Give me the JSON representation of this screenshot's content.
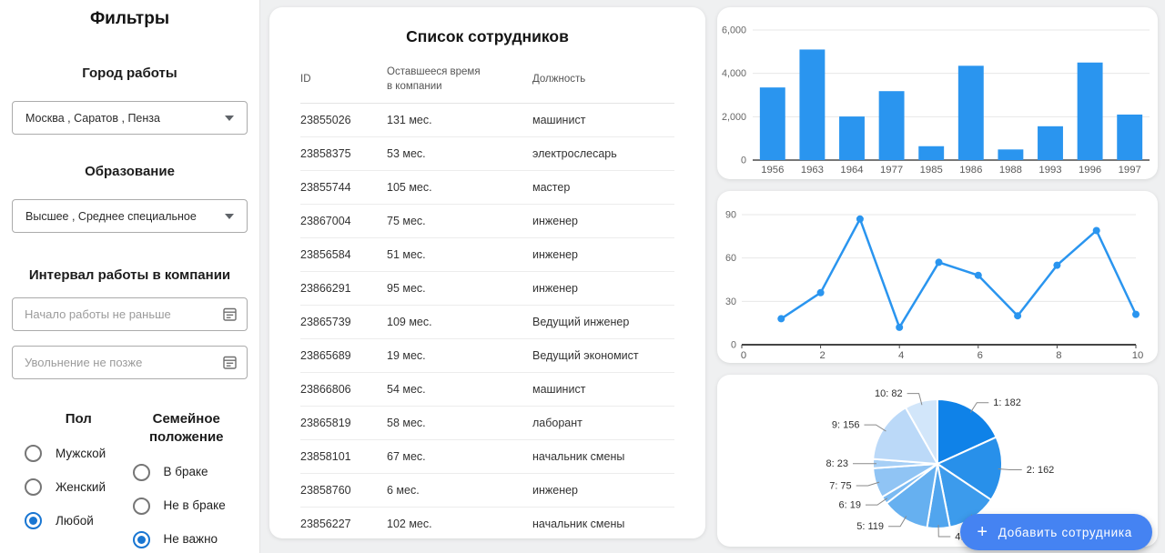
{
  "sidebar": {
    "title": "Фильтры",
    "city_label": "Город работы",
    "city_value": "Москва , Саратов , Пенза",
    "education_label": "Образование",
    "education_value": "Высшее , Среднее специальное",
    "interval_label": "Интервал работы в компании",
    "start_placeholder": "Начало работы не раньше",
    "end_placeholder": "Увольнение не позже",
    "gender": {
      "title": "Пол",
      "options": [
        {
          "label": "Мужской",
          "selected": false
        },
        {
          "label": "Женский",
          "selected": false
        },
        {
          "label": "Любой",
          "selected": true
        }
      ]
    },
    "marital": {
      "title": "Семейное положение",
      "options": [
        {
          "label": "В браке",
          "selected": false
        },
        {
          "label": "Не в браке",
          "selected": false
        },
        {
          "label": "Не важно",
          "selected": true
        }
      ]
    }
  },
  "table": {
    "title": "Список сотрудников",
    "columns": [
      "ID",
      "Оставшееся время в компании",
      "Должность"
    ],
    "rows": [
      {
        "id": "23855026",
        "time": "131 мес.",
        "position": "машинист"
      },
      {
        "id": "23858375",
        "time": "53 мес.",
        "position": "электрослесарь"
      },
      {
        "id": "23855744",
        "time": "105 мес.",
        "position": "мастер"
      },
      {
        "id": "23867004",
        "time": "75 мес.",
        "position": "инженер"
      },
      {
        "id": "23856584",
        "time": "51 мес.",
        "position": "инженер"
      },
      {
        "id": "23866291",
        "time": "95 мес.",
        "position": "инженер"
      },
      {
        "id": "23865739",
        "time": "109 мес.",
        "position": "Ведущий инженер"
      },
      {
        "id": "23865689",
        "time": "19 мес.",
        "position": "Ведущий экономист"
      },
      {
        "id": "23866806",
        "time": "54 мес.",
        "position": "машинист"
      },
      {
        "id": "23865819",
        "time": "58 мес.",
        "position": "лаборант"
      },
      {
        "id": "23858101",
        "time": "67 мес.",
        "position": "начальник смены"
      },
      {
        "id": "23858760",
        "time": "6 мес.",
        "position": "инженер"
      },
      {
        "id": "23856227",
        "time": "102 мес.",
        "position": "начальник смены"
      }
    ]
  },
  "fab": {
    "label": "Добавить сотрудника",
    "color": "#4583f2"
  },
  "chart_data": [
    {
      "type": "bar",
      "title": "",
      "categories": [
        "1956",
        "1963",
        "1964",
        "1977",
        "1985",
        "1986",
        "1988",
        "1993",
        "1996",
        "1997"
      ],
      "values": [
        3350,
        5100,
        2010,
        3180,
        640,
        4350,
        490,
        1560,
        4500,
        2100
      ],
      "xlabel": "",
      "ylabel": "",
      "ylim": [
        0,
        6000
      ],
      "yticks": [
        0,
        2000,
        4000,
        6000
      ],
      "grid": true,
      "bar_color": "#2a95ef"
    },
    {
      "type": "line",
      "title": "",
      "x": [
        1,
        2,
        3,
        4,
        5,
        6,
        7,
        8,
        9,
        10
      ],
      "y": [
        18,
        36,
        87,
        12,
        57,
        48,
        20,
        55,
        79,
        21
      ],
      "xlabel": "",
      "ylabel": "",
      "xlim": [
        0,
        10
      ],
      "ylim": [
        0,
        90
      ],
      "xticks": [
        0,
        2,
        4,
        6,
        8,
        10
      ],
      "yticks": [
        0,
        30,
        60,
        90
      ],
      "grid": true,
      "line_color": "#2a95ef",
      "marker": "circle"
    },
    {
      "type": "pie",
      "title": "",
      "slices": [
        {
          "label": "1: 182",
          "value": 182
        },
        {
          "label": "2: 162",
          "value": 162
        },
        {
          "label": "",
          "value": 125
        },
        {
          "label": "4: 57",
          "value": 57
        },
        {
          "label": "5: 119",
          "value": 119
        },
        {
          "label": "6: 19",
          "value": 19
        },
        {
          "label": "7: 75",
          "value": 75
        },
        {
          "label": "8: 23",
          "value": 23
        },
        {
          "label": "9: 156",
          "value": 156
        },
        {
          "label": "10: 82",
          "value": 82
        }
      ],
      "colors": [
        "#0f82e8",
        "#2890ea",
        "#3c9bec",
        "#51a5ee",
        "#66b0f0",
        "#7bbaf2",
        "#90c4f4",
        "#a6cff6",
        "#bbd9f8",
        "#d2e6fa"
      ],
      "start_angle_deg_from_top": 0,
      "direction": "clockwise"
    }
  ]
}
